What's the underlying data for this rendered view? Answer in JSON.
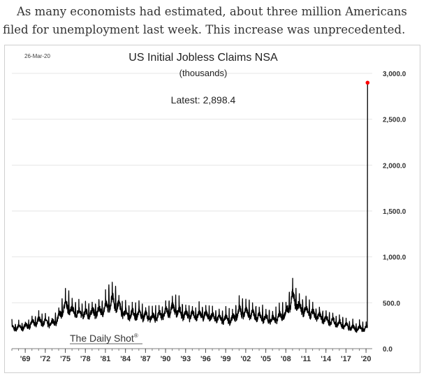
{
  "caption": "As many economists had estimated, about three million Americans filed for unemployment last week. This increase was unprecedented.",
  "colors": {
    "series": "#000000",
    "latest_marker": "#ff0000",
    "grid": "#e6e6e6",
    "text": "#404040"
  },
  "chart_data": {
    "type": "line",
    "date_label": "26-Mar-20",
    "title": "US Initial Jobless Claims NSA",
    "subtitle": "(thousands)",
    "annotation": "Latest:  2,898.4",
    "watermark": "The Daily Shot",
    "watermark_mark": "®",
    "ylabel": "",
    "xlabel": "",
    "ylim": [
      0,
      3000
    ],
    "y_ticks": [
      0,
      500,
      1000,
      1500,
      2000,
      2500,
      3000
    ],
    "y_tick_labels": [
      "0.0",
      "500.0",
      "1,000.0",
      "1,500.0",
      "2,000.0",
      "2,500.0",
      "3,000.0"
    ],
    "y_axis_side": "right",
    "grid": true,
    "xlim": [
      1967,
      2020.3
    ],
    "x_ticks": [
      1969,
      1972,
      1975,
      1978,
      1981,
      1984,
      1987,
      1990,
      1993,
      1996,
      1999,
      2002,
      2005,
      2008,
      2011,
      2014,
      2017,
      2020
    ],
    "x_tick_labels": [
      "'69",
      "'72",
      "'75",
      "'78",
      "'81",
      "'84",
      "'87",
      "'90",
      "'93",
      "'96",
      "'99",
      "'02",
      "'05",
      "'08",
      "'11",
      "'14",
      "'17",
      "'20"
    ],
    "series": [
      {
        "x": [
          1967,
          1969,
          1971,
          1973,
          1974,
          1975,
          1976,
          1978,
          1980,
          1981,
          1982,
          1983,
          1984,
          1986,
          1988,
          1990,
          1991,
          1993,
          1996,
          1998,
          2000,
          2001,
          2002,
          2004,
          2006,
          2008,
          2009,
          2010,
          2012,
          2014,
          2016,
          2018,
          2020
        ],
        "base": [
          220,
          235,
          300,
          265,
          330,
          470,
          400,
          370,
          400,
          430,
          520,
          450,
          370,
          370,
          330,
          380,
          430,
          360,
          360,
          320,
          310,
          400,
          390,
          340,
          310,
          370,
          560,
          440,
          370,
          310,
          270,
          220,
          215
        ],
        "peak": [
          320,
          380,
          480,
          420,
          560,
          970,
          720,
          650,
          700,
          800,
          1070,
          750,
          620,
          640,
          580,
          650,
          780,
          640,
          620,
          570,
          560,
          740,
          700,
          620,
          560,
          700,
          960,
          740,
          640,
          540,
          470,
          400,
          360
        ]
      }
    ],
    "latest": {
      "x": 2020.23,
      "y": 2898.4
    }
  }
}
